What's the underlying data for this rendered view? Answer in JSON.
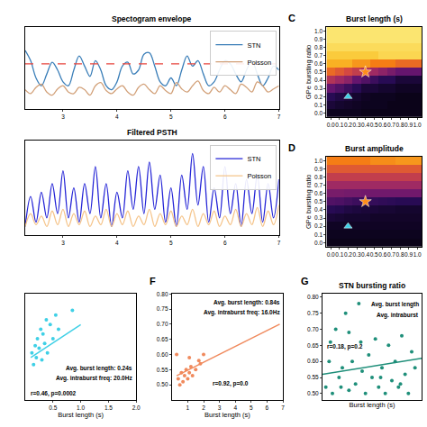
{
  "chart_data": [
    {
      "type": "line",
      "title": "Spectogram envelope",
      "xlim": [
        2.3,
        7.0
      ],
      "ylim": [
        0,
        1.05
      ],
      "xticks": [
        3,
        4,
        5,
        6,
        7
      ],
      "tick_labels": "x",
      "legend": "upper right",
      "x": [
        2.3,
        2.4,
        2.5,
        2.6,
        2.7,
        2.8,
        2.9,
        3.0,
        3.1,
        3.2,
        3.3,
        3.4,
        3.5,
        3.6,
        3.7,
        3.8,
        3.9,
        4.0,
        4.1,
        4.2,
        4.3,
        4.4,
        4.5,
        4.6,
        4.7,
        4.8,
        4.9,
        5.0,
        5.1,
        5.2,
        5.3,
        5.4,
        5.5,
        5.6,
        5.7,
        5.8,
        5.9,
        6.0,
        6.1,
        6.2,
        6.3,
        6.4,
        6.5,
        6.6,
        6.7,
        6.8,
        6.9,
        7.0
      ],
      "series": [
        {
          "name": "STN",
          "color": "#3a7eb8",
          "values": [
            0.75,
            0.62,
            0.4,
            0.3,
            0.45,
            0.6,
            0.5,
            0.35,
            0.3,
            0.5,
            0.68,
            0.55,
            0.42,
            0.62,
            0.5,
            0.3,
            0.25,
            0.35,
            0.55,
            0.6,
            0.45,
            0.5,
            0.7,
            0.72,
            0.55,
            0.35,
            0.3,
            0.4,
            0.3,
            0.5,
            0.68,
            0.55,
            0.62,
            0.45,
            0.3,
            0.35,
            0.5,
            0.62,
            0.58,
            0.45,
            0.35,
            0.5,
            0.62,
            0.45,
            0.3,
            0.4,
            0.55,
            0.5
          ]
        },
        {
          "name": "Poisson",
          "color": "#d2a078",
          "values": [
            0.25,
            0.2,
            0.28,
            0.32,
            0.22,
            0.18,
            0.26,
            0.3,
            0.22,
            0.2,
            0.28,
            0.25,
            0.18,
            0.3,
            0.34,
            0.24,
            0.2,
            0.26,
            0.3,
            0.22,
            0.18,
            0.28,
            0.32,
            0.25,
            0.2,
            0.3,
            0.24,
            0.2,
            0.34,
            0.26,
            0.22,
            0.3,
            0.36,
            0.24,
            0.2,
            0.28,
            0.22,
            0.3,
            0.25,
            0.2,
            0.32,
            0.28,
            0.22,
            0.35,
            0.3,
            0.22,
            0.26,
            0.3
          ]
        },
        {
          "color": "#e8453c",
          "line_style": "dashed",
          "x": [
            2.3,
            7.0
          ],
          "values": [
            0.58,
            0.58
          ]
        }
      ]
    },
    {
      "type": "line",
      "title": "Filtered PSTH",
      "xlim": [
        2.3,
        7.0
      ],
      "ylim": [
        0,
        1.1
      ],
      "xticks": [
        3,
        4,
        5,
        6,
        7
      ],
      "tick_labels": "x",
      "legend": "upper right",
      "x": [
        2.3,
        2.4,
        2.5,
        2.6,
        2.7,
        2.8,
        2.9,
        3.0,
        3.1,
        3.2,
        3.3,
        3.4,
        3.5,
        3.6,
        3.7,
        3.8,
        3.9,
        4.0,
        4.1,
        4.2,
        4.3,
        4.4,
        4.5,
        4.6,
        4.7,
        4.8,
        4.9,
        5.0,
        5.1,
        5.2,
        5.3,
        5.4,
        5.5,
        5.6,
        5.7,
        5.8,
        5.9,
        6.0,
        6.1,
        6.2,
        6.3,
        6.4,
        6.5,
        6.6,
        6.7,
        6.8,
        6.9,
        7.0
      ],
      "series": [
        {
          "name": "STN",
          "color": "#2323d6",
          "values": [
            0.1,
            0.45,
            0.15,
            0.5,
            0.2,
            0.6,
            0.25,
            0.75,
            0.2,
            0.55,
            0.15,
            0.6,
            0.25,
            0.8,
            0.2,
            0.6,
            0.1,
            0.5,
            0.2,
            0.75,
            0.3,
            0.8,
            0.25,
            0.85,
            0.3,
            0.7,
            0.15,
            0.55,
            0.1,
            0.7,
            0.3,
            0.95,
            0.35,
            0.8,
            0.15,
            0.55,
            0.2,
            0.8,
            0.25,
            0.6,
            0.1,
            0.65,
            0.25,
            0.7,
            0.15,
            0.6,
            0.2,
            0.65
          ]
        },
        {
          "name": "Poisson",
          "color": "#f5c48a",
          "values": [
            0.1,
            0.25,
            0.12,
            0.22,
            0.1,
            0.28,
            0.12,
            0.3,
            0.1,
            0.25,
            0.12,
            0.28,
            0.1,
            0.22,
            0.12,
            0.3,
            0.1,
            0.25,
            0.12,
            0.28,
            0.1,
            0.22,
            0.12,
            0.3,
            0.1,
            0.25,
            0.12,
            0.28,
            0.1,
            0.22,
            0.12,
            0.3,
            0.1,
            0.25,
            0.12,
            0.28,
            0.1,
            0.22,
            0.12,
            0.3,
            0.1,
            0.25,
            0.12,
            0.32,
            0.1,
            0.28,
            0.12,
            0.35
          ]
        }
      ]
    },
    {
      "type": "heatmap",
      "panel": "C",
      "title": "Burst length (s)",
      "ylabel": "GPe bursting ratio",
      "color": "inferno",
      "zlim": [
        0,
        1
      ],
      "xlim": [
        -0.05,
        1.05
      ],
      "ylim": [
        -0.05,
        1.05
      ],
      "xticks": [
        {
          "value": 0,
          "label": "0.0"
        },
        0.1,
        0.2,
        0.3,
        0.4,
        0.5,
        0.6,
        0.7,
        0.8,
        0.9,
        {
          "value": 1,
          "label": "1.0"
        }
      ],
      "yticks": [
        {
          "value": 0,
          "label": "0.0"
        },
        0.1,
        0.2,
        0.3,
        0.4,
        0.5,
        0.6,
        0.7,
        0.8,
        0.9,
        {
          "value": 1,
          "label": "1.0"
        }
      ],
      "x": [
        0,
        0.1,
        0.2,
        0.3,
        0.4,
        0.5,
        0.6,
        0.7,
        0.8,
        0.9,
        1
      ],
      "y": [
        0,
        0.1,
        0.2,
        0.3,
        0.4,
        0.5,
        0.6,
        0.7,
        0.8,
        0.9,
        1
      ],
      "z": [
        [
          0.05,
          0.05,
          0.05,
          0.05,
          0.04,
          0.04,
          0.04,
          0.04,
          0.04,
          0.04,
          0.04
        ],
        [
          0.1,
          0.08,
          0.07,
          0.06,
          0.05,
          0.05,
          0.05,
          0.04,
          0.04,
          0.04,
          0.04
        ],
        [
          0.15,
          0.12,
          0.1,
          0.08,
          0.06,
          0.05,
          0.05,
          0.05,
          0.04,
          0.04,
          0.04
        ],
        [
          0.3,
          0.25,
          0.2,
          0.15,
          0.1,
          0.1,
          0.08,
          0.08,
          0.06,
          0.06,
          0.06
        ],
        [
          0.5,
          0.45,
          0.4,
          0.3,
          0.25,
          0.2,
          0.15,
          0.15,
          0.1,
          0.1,
          0.1
        ],
        [
          0.7,
          0.65,
          0.6,
          0.55,
          0.5,
          0.45,
          0.4,
          0.35,
          0.3,
          0.3,
          0.3
        ],
        [
          0.85,
          0.85,
          0.85,
          0.8,
          0.8,
          0.75,
          0.75,
          0.75,
          0.7,
          0.7,
          0.7
        ],
        [
          0.9,
          0.9,
          0.9,
          0.9,
          0.9,
          0.9,
          0.92,
          0.92,
          0.92,
          0.92,
          0.92
        ],
        [
          0.93,
          0.93,
          0.93,
          0.93,
          0.93,
          0.93,
          0.93,
          0.93,
          0.93,
          0.93,
          0.93
        ],
        [
          0.95,
          0.95,
          0.95,
          0.95,
          0.95,
          0.95,
          0.95,
          0.95,
          0.95,
          0.95,
          0.95
        ],
        [
          0.95,
          0.95,
          0.95,
          0.95,
          0.95,
          0.95,
          0.95,
          0.95,
          0.95,
          0.95,
          0.95
        ]
      ],
      "series": [
        {
          "type": "scatter",
          "color": "#ff8c1a",
          "marker": "star",
          "x": [
            0.4
          ],
          "values": [
            0.5
          ]
        },
        {
          "type": "scatter",
          "color": "#3fd0e6",
          "marker": "triangle",
          "x": [
            0.2
          ],
          "values": [
            0.2
          ]
        }
      ]
    },
    {
      "type": "heatmap",
      "panel": "D",
      "title": "Burst amplitude",
      "ylabel": "GPe bursting ratio",
      "color": "inferno",
      "zlim": [
        0,
        1
      ],
      "xlim": [
        -0.05,
        1.05
      ],
      "ylim": [
        -0.05,
        1.05
      ],
      "xticks": [
        {
          "value": 0,
          "label": "0.0"
        },
        0.1,
        0.2,
        0.3,
        0.4,
        0.5,
        0.6,
        0.7,
        0.8,
        0.9,
        {
          "value": 1,
          "label": "1.0"
        }
      ],
      "yticks": [
        {
          "value": 0,
          "label": "0.0"
        },
        0.1,
        0.2,
        0.3,
        0.4,
        0.5,
        0.6,
        0.7,
        0.8,
        0.9,
        {
          "value": 1,
          "label": "1.0"
        }
      ],
      "x": [
        0,
        0.1,
        0.2,
        0.3,
        0.4,
        0.5,
        0.6,
        0.7,
        0.8,
        0.9,
        1
      ],
      "y": [
        0,
        0.1,
        0.2,
        0.3,
        0.4,
        0.5,
        0.6,
        0.7,
        0.8,
        0.9,
        1
      ],
      "z": [
        [
          0.04,
          0.04,
          0.04,
          0.04,
          0.04,
          0.04,
          0.04,
          0.04,
          0.04,
          0.04,
          0.04
        ],
        [
          0.05,
          0.05,
          0.05,
          0.05,
          0.05,
          0.05,
          0.05,
          0.05,
          0.05,
          0.05,
          0.05
        ],
        [
          0.06,
          0.06,
          0.06,
          0.06,
          0.06,
          0.06,
          0.06,
          0.06,
          0.06,
          0.06,
          0.06
        ],
        [
          0.1,
          0.09,
          0.08,
          0.08,
          0.08,
          0.07,
          0.07,
          0.07,
          0.07,
          0.07,
          0.07
        ],
        [
          0.15,
          0.14,
          0.12,
          0.11,
          0.1,
          0.1,
          0.09,
          0.09,
          0.08,
          0.08,
          0.08
        ],
        [
          0.25,
          0.24,
          0.22,
          0.2,
          0.19,
          0.18,
          0.17,
          0.16,
          0.15,
          0.15,
          0.15
        ],
        [
          0.35,
          0.35,
          0.34,
          0.34,
          0.33,
          0.33,
          0.33,
          0.33,
          0.33,
          0.33,
          0.33
        ],
        [
          0.45,
          0.45,
          0.45,
          0.45,
          0.45,
          0.45,
          0.45,
          0.45,
          0.45,
          0.45,
          0.45
        ],
        [
          0.55,
          0.55,
          0.55,
          0.55,
          0.55,
          0.55,
          0.55,
          0.55,
          0.55,
          0.55,
          0.55
        ],
        [
          0.65,
          0.65,
          0.65,
          0.65,
          0.65,
          0.65,
          0.65,
          0.65,
          0.65,
          0.65,
          0.65
        ],
        [
          0.75,
          0.75,
          0.75,
          0.75,
          0.75,
          0.78,
          0.78,
          0.78,
          0.8,
          0.8,
          0.8
        ]
      ],
      "series": [
        {
          "type": "scatter",
          "color": "#ff8c1a",
          "marker": "star",
          "x": [
            0.4
          ],
          "values": [
            0.5
          ]
        },
        {
          "type": "scatter",
          "color": "#3fd0e6",
          "marker": "triangle",
          "x": [
            0.2
          ],
          "values": [
            0.2
          ]
        }
      ]
    },
    {
      "type": "scatter",
      "xlabel": "Burst length (s)",
      "xlim": [
        0,
        2.0
      ],
      "ylim": [
        0.4,
        0.85
      ],
      "tick_labels": "x",
      "xticks": [
        0.5,
        {
          "value": 1,
          "label": "1.0"
        },
        1.5,
        {
          "value": 2,
          "label": "2.0"
        }
      ],
      "annotations": [
        "Avg. burst length: 0.24s",
        "Avg. intraburst freq: 20.0Hz",
        "r=0.46, p=0.0002"
      ],
      "series": [
        {
          "color": "#3fd0e6",
          "marker": "circle",
          "x": [
            0.12,
            0.15,
            0.18,
            0.2,
            0.22,
            0.25,
            0.28,
            0.3,
            0.32,
            0.35,
            0.38,
            0.4,
            0.45,
            0.5,
            0.55,
            0.6,
            0.85
          ],
          "values": [
            0.6,
            0.55,
            0.63,
            0.58,
            0.66,
            0.62,
            0.7,
            0.57,
            0.68,
            0.64,
            0.74,
            0.6,
            0.72,
            0.66,
            0.76,
            0.7,
            0.78
          ]
        },
        {
          "type": "line",
          "color": "#3fd0e6",
          "x": [
            0.1,
            1.0
          ],
          "values": [
            0.58,
            0.72
          ]
        }
      ]
    },
    {
      "type": "scatter",
      "panel": "F",
      "xlabel": "Burst length (s)",
      "xlim": [
        0,
        7
      ],
      "ylim": [
        0.45,
        0.8
      ],
      "xticks": [
        1,
        2,
        3,
        4,
        5,
        6,
        7
      ],
      "yticks": [
        {
          "value": 0.5,
          "label": "0.50"
        },
        {
          "value": 0.55,
          "label": "0.55"
        },
        {
          "value": 0.6,
          "label": "0.60"
        },
        {
          "value": 0.65,
          "label": "0.65"
        },
        {
          "value": 0.7,
          "label": "0.70"
        },
        {
          "value": 0.75,
          "label": "0.75"
        },
        {
          "value": 0.8,
          "label": "0.80"
        }
      ],
      "annotations": [
        "Avg. burst length: 0.84s",
        "Avg. intraburst freq: 16.0Hz",
        "r=0.92, p=0.0"
      ],
      "series": [
        {
          "color": "#f08a5d",
          "marker": "circle",
          "x": [
            0.3,
            0.4,
            0.5,
            0.6,
            0.7,
            0.8,
            0.9,
            1.0,
            1.1,
            1.1,
            1.2,
            1.3,
            1.5,
            1.7,
            1.8,
            2.0
          ],
          "values": [
            0.6,
            0.52,
            0.5,
            0.54,
            0.51,
            0.53,
            0.55,
            0.52,
            0.54,
            0.59,
            0.56,
            0.53,
            0.55,
            0.58,
            0.57,
            0.6
          ]
        },
        {
          "type": "line",
          "color": "#f08a5d",
          "x": [
            0.3,
            6.8
          ],
          "values": [
            0.53,
            0.7
          ]
        }
      ]
    },
    {
      "type": "scatter",
      "panel": "G",
      "title": "STN bursting ratio",
      "xlabel": "Burst length (s)",
      "xlim": [
        0,
        1.5
      ],
      "ylim": [
        0.48,
        0.81
      ],
      "tick_labels": "y",
      "yticks": [
        {
          "value": 0.5,
          "label": "0.50"
        },
        {
          "value": 0.55,
          "label": "0.55"
        },
        {
          "value": 0.6,
          "label": "0.60"
        },
        {
          "value": 0.65,
          "label": "0.65"
        },
        {
          "value": 0.7,
          "label": "0.70"
        },
        {
          "value": 0.75,
          "label": "0.75"
        },
        {
          "value": 0.8,
          "label": "0.80"
        }
      ],
      "annotations": [
        "Avg. burst length",
        "Avg. intraburst",
        "r=0.18, p=0.2"
      ],
      "series": [
        {
          "color": "#1f8f7a",
          "marker": "circle",
          "x": [
            0.05,
            0.1,
            0.15,
            0.2,
            0.25,
            0.3,
            0.35,
            0.4,
            0.45,
            0.5,
            0.55,
            0.6,
            0.65,
            0.7,
            0.75,
            0.8,
            0.85,
            0.9,
            0.95,
            1.0,
            1.05,
            1.1,
            1.15,
            1.2,
            1.25,
            1.3,
            1.35,
            1.4,
            0.12,
            0.28,
            0.58,
            0.88,
            1.18,
            0.4
          ],
          "values": [
            0.52,
            0.6,
            0.5,
            0.7,
            0.55,
            0.58,
            0.75,
            0.51,
            0.6,
            0.53,
            0.78,
            0.57,
            0.5,
            0.62,
            0.55,
            0.67,
            0.52,
            0.58,
            0.5,
            0.65,
            0.54,
            0.6,
            0.52,
            0.68,
            0.56,
            0.5,
            0.63,
            0.58,
            0.66,
            0.52,
            0.66,
            0.55,
            0.53,
            0.69
          ]
        },
        {
          "type": "line",
          "color": "#1f8f7a",
          "x": [
            0,
            1.5
          ],
          "values": [
            0.56,
            0.61
          ]
        }
      ]
    }
  ]
}
